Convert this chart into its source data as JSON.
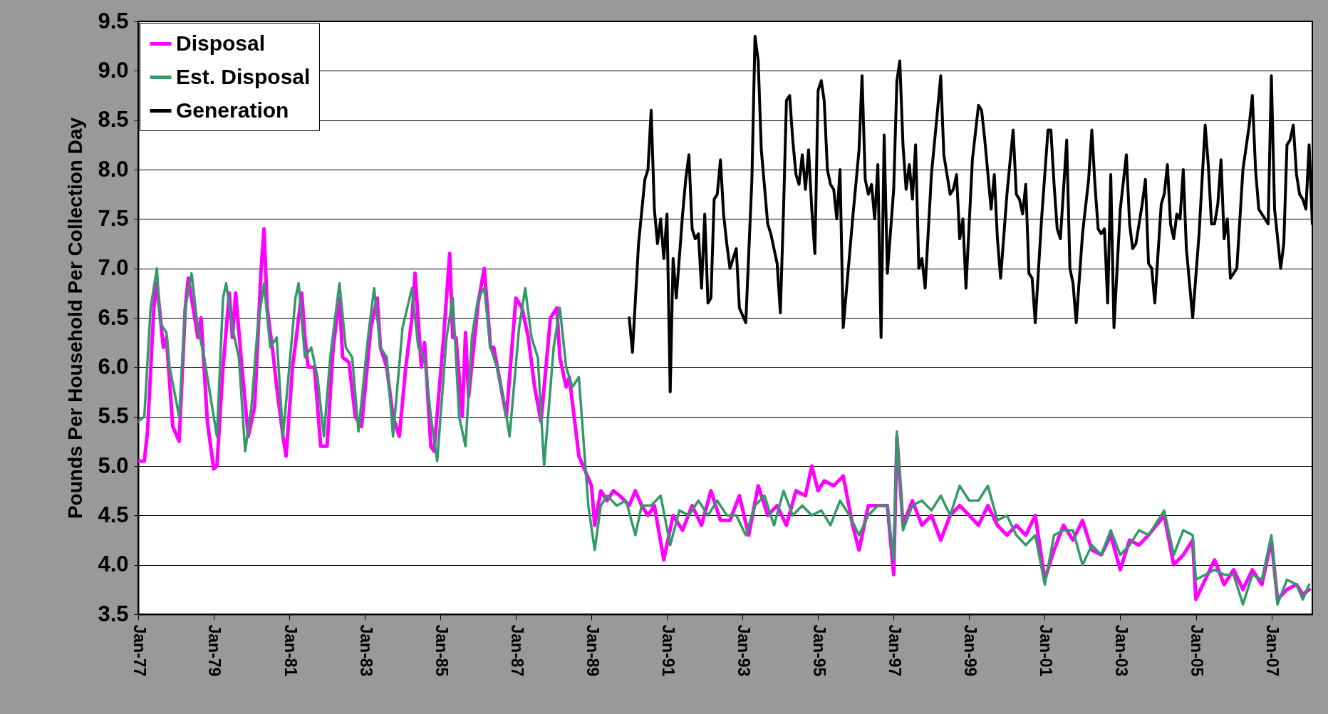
{
  "chart_data": {
    "type": "line",
    "ylabel": "Pounds Per Household Per Collection Day",
    "xlim": [
      "1977-01",
      "2008-02"
    ],
    "xticks": [
      {
        "value": "1977-01",
        "label": "Jan-77"
      },
      {
        "value": "1979-01",
        "label": "Jan-79"
      },
      {
        "value": "1981-01",
        "label": "Jan-81"
      },
      {
        "value": "1983-01",
        "label": "Jan-83"
      },
      {
        "value": "1985-01",
        "label": "Jan-85"
      },
      {
        "value": "1987-01",
        "label": "Jan-87"
      },
      {
        "value": "1989-01",
        "label": "Jan-89"
      },
      {
        "value": "1991-01",
        "label": "Jan-91"
      },
      {
        "value": "1993-01",
        "label": "Jan-93"
      },
      {
        "value": "1995-01",
        "label": "Jan-95"
      },
      {
        "value": "1997-01",
        "label": "Jan-97"
      },
      {
        "value": "1999-01",
        "label": "Jan-99"
      },
      {
        "value": "2001-01",
        "label": "Jan-01"
      },
      {
        "value": "2003-01",
        "label": "Jan-03"
      },
      {
        "value": "2005-01",
        "label": "Jan-05"
      },
      {
        "value": "2007-01",
        "label": "Jan-07"
      }
    ],
    "ylim": [
      3.5,
      9.5
    ],
    "yticks": [
      {
        "value": 3.5,
        "label": "3.5"
      },
      {
        "value": 4,
        "label": "4.0"
      },
      {
        "value": 4.5,
        "label": "4.5"
      },
      {
        "value": 5,
        "label": "5.0"
      },
      {
        "value": 5.5,
        "label": "5.5"
      },
      {
        "value": 6,
        "label": "6.0"
      },
      {
        "value": 6.5,
        "label": "6.5"
      },
      {
        "value": 7,
        "label": "7.0"
      },
      {
        "value": 7.5,
        "label": "7.5"
      },
      {
        "value": 8,
        "label": "8.0"
      },
      {
        "value": 8.5,
        "label": "8.5"
      },
      {
        "value": 9,
        "label": "9.0"
      },
      {
        "value": 9.5,
        "label": "9.5"
      }
    ],
    "grid": "y",
    "legend": "top left",
    "marker": "none",
    "line_style": "solid",
    "series": [
      {
        "name": "Disposal",
        "color": "#ff00ff",
        "x": [
          "1977-01",
          "1977-03",
          "1977-04",
          "1977-06",
          "1977-07",
          "1977-09",
          "1977-10",
          "1977-12",
          "1978-02",
          "1978-04",
          "1978-05",
          "1978-08",
          "1978-09",
          "1978-11",
          "1979-01",
          "1979-02",
          "1979-04",
          "1979-06",
          "1979-07",
          "1979-08",
          "1979-10",
          "1979-12",
          "1980-02",
          "1980-04",
          "1980-05",
          "1980-06",
          "1980-08",
          "1980-09",
          "1980-11",
          "1980-12",
          "1981-02",
          "1981-05",
          "1981-06",
          "1981-07",
          "1981-09",
          "1981-11",
          "1982-01",
          "1982-03",
          "1982-05",
          "1982-06",
          "1982-08",
          "1982-10",
          "1982-12",
          "1983-03",
          "1983-05",
          "1983-06",
          "1983-08",
          "1983-10",
          "1983-12",
          "1984-02",
          "1984-04",
          "1984-05",
          "1984-07",
          "1984-08",
          "1984-10",
          "1984-11",
          "1985-02",
          "1985-04",
          "1985-05",
          "1985-06",
          "1985-08",
          "1985-09",
          "1985-10",
          "1986-01",
          "1986-03",
          "1986-05",
          "1986-06",
          "1986-08",
          "1986-10",
          "1987-01",
          "1987-03",
          "1987-05",
          "1987-07",
          "1987-09",
          "1987-12",
          "1988-02",
          "1988-03",
          "1988-05",
          "1988-06",
          "1988-09",
          "1989-01",
          "1989-02",
          "1989-04",
          "1989-06",
          "1989-08",
          "1989-10",
          "1990-01",
          "1990-03",
          "1990-05",
          "1990-07",
          "1990-09",
          "1990-12",
          "1991-03",
          "1991-06",
          "1991-09",
          "1991-12",
          "1992-03",
          "1992-06",
          "1992-09",
          "1992-12",
          "1993-03",
          "1993-06",
          "1993-09",
          "1993-12",
          "1994-03",
          "1994-06",
          "1994-09",
          "1994-11",
          "1995-01",
          "1995-03",
          "1995-06",
          "1995-09",
          "1995-12",
          "1996-02",
          "1996-05",
          "1996-08",
          "1996-11",
          "1997-01",
          "1997-02",
          "1997-04",
          "1997-07",
          "1997-10",
          "1998-01",
          "1998-04",
          "1998-07",
          "1998-10",
          "1999-01",
          "1999-04",
          "1999-07",
          "1999-10",
          "2000-01",
          "2000-04",
          "2000-07",
          "2000-10",
          "2001-01",
          "2001-04",
          "2001-07",
          "2001-10",
          "2002-01",
          "2002-04",
          "2002-07",
          "2002-10",
          "2003-01",
          "2003-04",
          "2003-07",
          "2003-10",
          "2004-03",
          "2004-06",
          "2004-09",
          "2004-12",
          "2005-01",
          "2005-04",
          "2005-07",
          "2005-10",
          "2006-01",
          "2006-04",
          "2006-07",
          "2006-10",
          "2007-01",
          "2007-03",
          "2007-06",
          "2007-09",
          "2007-11",
          "2008-01"
        ],
        "values": [
          5.05,
          5.05,
          5.35,
          6.6,
          6.85,
          6.2,
          6.3,
          5.4,
          5.25,
          6.6,
          6.9,
          6.3,
          6.5,
          5.45,
          4.97,
          5.0,
          6.0,
          6.75,
          6.3,
          6.75,
          6.0,
          5.3,
          5.6,
          6.95,
          7.4,
          6.6,
          6.1,
          5.8,
          5.3,
          5.1,
          6.0,
          6.75,
          6.3,
          6.0,
          6.0,
          5.2,
          5.2,
          6.2,
          6.7,
          6.1,
          6.05,
          5.5,
          5.4,
          6.4,
          6.7,
          6.2,
          6.0,
          5.5,
          5.3,
          6.0,
          6.5,
          6.95,
          6.0,
          6.25,
          5.2,
          5.15,
          6.3,
          7.15,
          6.3,
          6.3,
          5.5,
          6.35,
          5.7,
          6.65,
          7.0,
          6.2,
          6.2,
          5.85,
          5.5,
          6.7,
          6.6,
          6.3,
          5.8,
          5.45,
          6.5,
          6.6,
          6.1,
          5.8,
          5.9,
          5.1,
          4.8,
          4.4,
          4.75,
          4.65,
          4.75,
          4.7,
          4.6,
          4.75,
          4.6,
          4.5,
          4.6,
          4.05,
          4.5,
          4.35,
          4.6,
          4.4,
          4.75,
          4.45,
          4.45,
          4.7,
          4.3,
          4.8,
          4.5,
          4.6,
          4.4,
          4.75,
          4.7,
          5.0,
          4.75,
          4.85,
          4.8,
          4.9,
          4.4,
          4.15,
          4.6,
          4.6,
          4.6,
          3.9,
          5.3,
          4.4,
          4.65,
          4.4,
          4.5,
          4.25,
          4.5,
          4.6,
          4.5,
          4.4,
          4.6,
          4.4,
          4.3,
          4.4,
          4.3,
          4.5,
          3.85,
          4.15,
          4.4,
          4.25,
          4.45,
          4.15,
          4.1,
          4.3,
          3.95,
          4.25,
          4.2,
          4.3,
          4.5,
          4.0,
          4.1,
          4.25,
          3.65,
          3.85,
          4.05,
          3.8,
          3.95,
          3.75,
          3.95,
          3.8,
          4.25,
          3.65,
          3.75,
          3.8,
          3.7,
          3.75
        ]
      },
      {
        "name": "Est. Disposal",
        "color": "#339966",
        "x": [
          "1977-01",
          "1977-03",
          "1977-05",
          "1977-07",
          "1977-08",
          "1977-10",
          "1977-11",
          "1978-02",
          "1978-04",
          "1978-06",
          "1978-08",
          "1978-10",
          "1978-12",
          "1979-02",
          "1979-04",
          "1979-05",
          "1979-07",
          "1979-09",
          "1979-11",
          "1980-01",
          "1980-03",
          "1980-05",
          "1980-07",
          "1980-09",
          "1980-11",
          "1981-01",
          "1981-03",
          "1981-04",
          "1981-06",
          "1981-08",
          "1981-10",
          "1981-12",
          "1982-02",
          "1982-05",
          "1982-07",
          "1982-09",
          "1982-11",
          "1983-02",
          "1983-04",
          "1983-06",
          "1983-08",
          "1983-10",
          "1984-01",
          "1984-04",
          "1984-06",
          "1984-08",
          "1984-10",
          "1984-12",
          "1985-03",
          "1985-05",
          "1985-07",
          "1985-09",
          "1985-11",
          "1986-01",
          "1986-03",
          "1986-05",
          "1986-07",
          "1986-09",
          "1986-11",
          "1987-02",
          "1987-04",
          "1987-06",
          "1987-08",
          "1987-10",
          "1988-01",
          "1988-03",
          "1988-05",
          "1988-07",
          "1988-09",
          "1988-12",
          "1989-02",
          "1989-04",
          "1989-06",
          "1989-09",
          "1989-12",
          "1990-03",
          "1990-05",
          "1990-08",
          "1990-11",
          "1991-02",
          "1991-05",
          "1991-08",
          "1991-11",
          "1992-02",
          "1992-05",
          "1992-08",
          "1992-11",
          "1993-02",
          "1993-05",
          "1993-08",
          "1993-11",
          "1994-02",
          "1994-05",
          "1994-08",
          "1994-11",
          "1995-02",
          "1995-05",
          "1995-08",
          "1995-11",
          "1996-02",
          "1996-05",
          "1996-08",
          "1996-11",
          "1997-01",
          "1997-02",
          "1997-04",
          "1997-07",
          "1997-10",
          "1998-01",
          "1998-04",
          "1998-07",
          "1998-10",
          "1999-01",
          "1999-04",
          "1999-07",
          "1999-10",
          "2000-01",
          "2000-04",
          "2000-07",
          "2000-10",
          "2001-01",
          "2001-04",
          "2001-07",
          "2001-10",
          "2002-01",
          "2002-04",
          "2002-07",
          "2002-10",
          "2003-01",
          "2003-04",
          "2003-07",
          "2003-10",
          "2004-03",
          "2004-06",
          "2004-09",
          "2004-12",
          "2005-01",
          "2005-04",
          "2005-07",
          "2005-10",
          "2006-01",
          "2006-04",
          "2006-07",
          "2006-10",
          "2007-01",
          "2007-03",
          "2007-06",
          "2007-09",
          "2007-11",
          "2008-01"
        ],
        "values": [
          5.45,
          5.5,
          6.6,
          7.0,
          6.45,
          6.35,
          6.0,
          5.5,
          6.6,
          6.95,
          6.4,
          6.1,
          5.7,
          5.3,
          6.7,
          6.85,
          6.4,
          6.1,
          5.15,
          5.6,
          6.4,
          6.85,
          6.2,
          6.3,
          5.3,
          6.0,
          6.7,
          6.85,
          6.1,
          6.2,
          5.9,
          5.3,
          6.1,
          6.85,
          6.2,
          6.1,
          5.35,
          6.3,
          6.8,
          6.2,
          6.1,
          5.3,
          6.4,
          6.8,
          6.2,
          6.1,
          5.5,
          5.05,
          6.3,
          6.7,
          5.5,
          5.2,
          6.3,
          6.7,
          6.8,
          6.2,
          6.0,
          5.7,
          5.3,
          6.4,
          6.8,
          6.3,
          6.1,
          5.0,
          6.2,
          6.6,
          6.0,
          5.8,
          5.9,
          4.6,
          4.15,
          4.6,
          4.7,
          4.6,
          4.65,
          4.3,
          4.6,
          4.6,
          4.7,
          4.2,
          4.55,
          4.5,
          4.65,
          4.5,
          4.65,
          4.5,
          4.5,
          4.3,
          4.6,
          4.7,
          4.4,
          4.75,
          4.5,
          4.6,
          4.5,
          4.55,
          4.4,
          4.65,
          4.5,
          4.3,
          4.5,
          4.6,
          4.6,
          4.05,
          5.35,
          4.35,
          4.6,
          4.65,
          4.55,
          4.7,
          4.5,
          4.8,
          4.65,
          4.65,
          4.8,
          4.45,
          4.5,
          4.3,
          4.2,
          4.3,
          3.8,
          4.3,
          4.35,
          4.35,
          4.0,
          4.2,
          4.1,
          4.35,
          4.1,
          4.2,
          4.35,
          4.3,
          4.55,
          4.1,
          4.35,
          4.3,
          3.85,
          3.9,
          3.95,
          3.9,
          3.9,
          3.6,
          3.9,
          3.85,
          4.3,
          3.6,
          3.85,
          3.8,
          3.65,
          3.8
        ]
      },
      {
        "name": "Generation",
        "color": "#000000",
        "x": [
          "1990-01",
          "1990-02",
          "1990-04",
          "1990-06",
          "1990-07",
          "1990-08",
          "1990-09",
          "1990-10",
          "1990-11",
          "1990-12",
          "1991-01",
          "1991-02",
          "1991-03",
          "1991-04",
          "1991-06",
          "1991-07",
          "1991-08",
          "1991-09",
          "1991-10",
          "1991-11",
          "1991-12",
          "1992-01",
          "1992-02",
          "1992-03",
          "1992-04",
          "1992-05",
          "1992-06",
          "1992-07",
          "1992-08",
          "1992-09",
          "1992-10",
          "1992-11",
          "1992-12",
          "1993-02",
          "1993-04",
          "1993-05",
          "1993-06",
          "1993-07",
          "1993-09",
          "1993-10",
          "1993-12",
          "1994-01",
          "1994-02",
          "1994-03",
          "1994-04",
          "1994-05",
          "1994-06",
          "1994-07",
          "1994-08",
          "1994-09",
          "1994-10",
          "1994-11",
          "1994-12",
          "1995-01",
          "1995-02",
          "1995-03",
          "1995-04",
          "1995-05",
          "1995-06",
          "1995-07",
          "1995-08",
          "1995-09",
          "1995-12",
          "1996-02",
          "1996-03",
          "1996-04",
          "1996-05",
          "1996-06",
          "1996-07",
          "1996-08",
          "1996-09",
          "1996-10",
          "1996-11",
          "1997-01",
          "1997-02",
          "1997-03",
          "1997-04",
          "1997-05",
          "1997-06",
          "1997-07",
          "1997-08",
          "1997-09",
          "1997-10",
          "1997-11",
          "1998-01",
          "1998-03",
          "1998-04",
          "1998-05",
          "1998-07",
          "1998-08",
          "1998-09",
          "1998-10",
          "1998-11",
          "1998-12",
          "1999-02",
          "1999-04",
          "1999-05",
          "1999-06",
          "1999-08",
          "1999-09",
          "1999-10",
          "1999-11",
          "2000-01",
          "2000-03",
          "2000-04",
          "2000-05",
          "2000-06",
          "2000-07",
          "2000-08",
          "2000-09",
          "2000-10",
          "2000-12",
          "2001-02",
          "2001-03",
          "2001-04",
          "2001-05",
          "2001-06",
          "2001-08",
          "2001-09",
          "2001-10",
          "2001-11",
          "2002-01",
          "2002-03",
          "2002-04",
          "2002-05",
          "2002-06",
          "2002-07",
          "2002-08",
          "2002-09",
          "2002-10",
          "2002-11",
          "2003-01",
          "2003-03",
          "2003-04",
          "2003-05",
          "2003-06",
          "2003-08",
          "2003-09",
          "2003-10",
          "2003-11",
          "2003-12",
          "2004-02",
          "2004-03",
          "2004-04",
          "2004-05",
          "2004-06",
          "2004-07",
          "2004-08",
          "2004-09",
          "2004-10",
          "2004-12",
          "2005-02",
          "2005-04",
          "2005-05",
          "2005-06",
          "2005-07",
          "2005-08",
          "2005-09",
          "2005-10",
          "2005-11",
          "2005-12",
          "2006-01",
          "2006-02",
          "2006-04",
          "2006-06",
          "2006-07",
          "2006-08",
          "2006-09",
          "2006-10",
          "2006-11",
          "2006-12",
          "2007-01",
          "2007-02",
          "2007-04",
          "2007-05",
          "2007-06",
          "2007-07",
          "2007-08",
          "2007-09",
          "2007-10",
          "2007-11",
          "2007-12",
          "2008-01",
          "2008-02"
        ],
        "values": [
          6.5,
          6.15,
          7.25,
          7.9,
          8.0,
          8.6,
          7.6,
          7.25,
          7.5,
          7.1,
          7.55,
          5.75,
          7.1,
          6.7,
          7.55,
          7.9,
          8.15,
          7.4,
          7.3,
          7.35,
          6.8,
          7.55,
          6.65,
          6.7,
          7.7,
          7.75,
          8.1,
          7.55,
          7.25,
          7.0,
          7.1,
          7.2,
          6.6,
          6.45,
          7.9,
          9.35,
          9.1,
          8.2,
          7.45,
          7.35,
          7.05,
          6.55,
          7.6,
          8.7,
          8.75,
          8.3,
          7.95,
          7.85,
          8.15,
          7.8,
          8.2,
          7.6,
          7.15,
          8.8,
          8.9,
          8.7,
          8.0,
          7.85,
          7.8,
          7.5,
          8.0,
          6.4,
          7.5,
          8.2,
          8.95,
          7.9,
          7.75,
          7.85,
          7.5,
          8.05,
          6.3,
          8.35,
          6.95,
          7.8,
          8.9,
          9.1,
          8.25,
          7.8,
          8.05,
          7.7,
          8.25,
          7.0,
          7.1,
          6.8,
          7.95,
          8.6,
          8.95,
          8.15,
          7.75,
          7.8,
          7.95,
          7.3,
          7.5,
          6.8,
          8.1,
          8.65,
          8.6,
          8.3,
          7.6,
          7.95,
          7.3,
          6.9,
          7.75,
          8.4,
          7.75,
          7.7,
          7.55,
          7.85,
          6.95,
          6.9,
          6.45,
          7.5,
          8.4,
          8.4,
          7.85,
          7.4,
          7.3,
          8.3,
          7.0,
          6.85,
          6.45,
          7.35,
          7.9,
          8.4,
          7.85,
          7.4,
          7.35,
          7.4,
          6.65,
          7.95,
          6.4,
          7.6,
          8.15,
          7.45,
          7.2,
          7.25,
          7.65,
          7.9,
          7.05,
          7.0,
          6.65,
          7.65,
          7.75,
          8.05,
          7.45,
          7.3,
          7.55,
          7.5,
          8.0,
          7.2,
          6.5,
          7.35,
          8.45,
          8.05,
          7.45,
          7.45,
          7.65,
          8.1,
          7.3,
          7.5,
          6.9,
          6.95,
          7.0,
          8.0,
          8.45,
          8.75,
          8.0,
          7.6,
          7.55,
          7.5,
          7.45,
          8.95,
          7.6,
          7.0,
          7.25,
          8.25,
          8.3,
          8.45,
          7.95,
          7.75,
          7.7,
          7.6,
          8.25,
          7.45
        ]
      }
    ]
  }
}
